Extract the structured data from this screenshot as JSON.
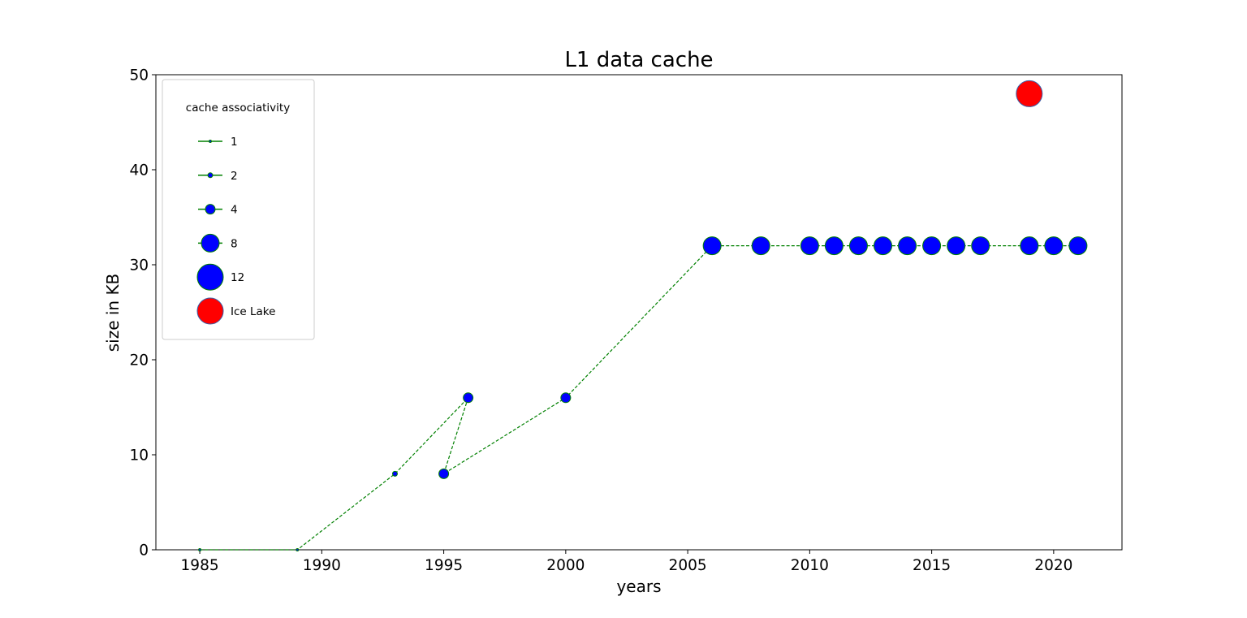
{
  "chart_data": {
    "type": "scatter",
    "title": "L1 data cache",
    "xlabel": "years",
    "ylabel": "size in KB",
    "xlim": [
      1983.2,
      2022.8
    ],
    "ylim": [
      0,
      50
    ],
    "xticks": [
      1985,
      1990,
      1995,
      2000,
      2005,
      2010,
      2015,
      2020
    ],
    "yticks": [
      0,
      10,
      20,
      30,
      40,
      50
    ],
    "grid": false,
    "line_color": "#008000",
    "marker_fill": "#0000ff",
    "highlight_color": "#ff0000",
    "series": [
      {
        "name": "",
        "style": "dashed",
        "points": [
          {
            "x": 1985,
            "y": 0,
            "assoc": 1
          },
          {
            "x": 1989,
            "y": 0,
            "assoc": 1
          },
          {
            "x": 1993,
            "y": 8,
            "assoc": 2
          },
          {
            "x": 1996,
            "y": 16,
            "assoc": 4
          },
          {
            "x": 1995,
            "y": 8,
            "assoc": 4
          },
          {
            "x": 2000,
            "y": 16,
            "assoc": 4
          },
          {
            "x": 2006,
            "y": 32,
            "assoc": 8
          },
          {
            "x": 2008,
            "y": 32,
            "assoc": 8
          },
          {
            "x": 2010,
            "y": 32,
            "assoc": 8
          },
          {
            "x": 2011,
            "y": 32,
            "assoc": 8
          },
          {
            "x": 2012,
            "y": 32,
            "assoc": 8
          },
          {
            "x": 2013,
            "y": 32,
            "assoc": 8
          },
          {
            "x": 2014,
            "y": 32,
            "assoc": 8
          },
          {
            "x": 2015,
            "y": 32,
            "assoc": 8
          },
          {
            "x": 2016,
            "y": 32,
            "assoc": 8
          },
          {
            "x": 2017,
            "y": 32,
            "assoc": 8
          },
          {
            "x": 2019,
            "y": 32,
            "assoc": 8
          },
          {
            "x": 2020,
            "y": 32,
            "assoc": 8
          },
          {
            "x": 2021,
            "y": 32,
            "assoc": 8
          }
        ]
      },
      {
        "name": "Ice Lake",
        "points": [
          {
            "x": 2019,
            "y": 48,
            "assoc": 12
          }
        ]
      }
    ],
    "legend": {
      "title": "cache associativity",
      "position": "upper-left",
      "entries": [
        {
          "label": "1",
          "assoc": 1,
          "kind": "assoc"
        },
        {
          "label": "2",
          "assoc": 2,
          "kind": "assoc"
        },
        {
          "label": "4",
          "assoc": 4,
          "kind": "assoc"
        },
        {
          "label": "8",
          "assoc": 8,
          "kind": "assoc"
        },
        {
          "label": "12",
          "assoc": 12,
          "kind": "assoc"
        },
        {
          "label": "Ice Lake",
          "assoc": 12,
          "kind": "highlight"
        }
      ]
    }
  }
}
